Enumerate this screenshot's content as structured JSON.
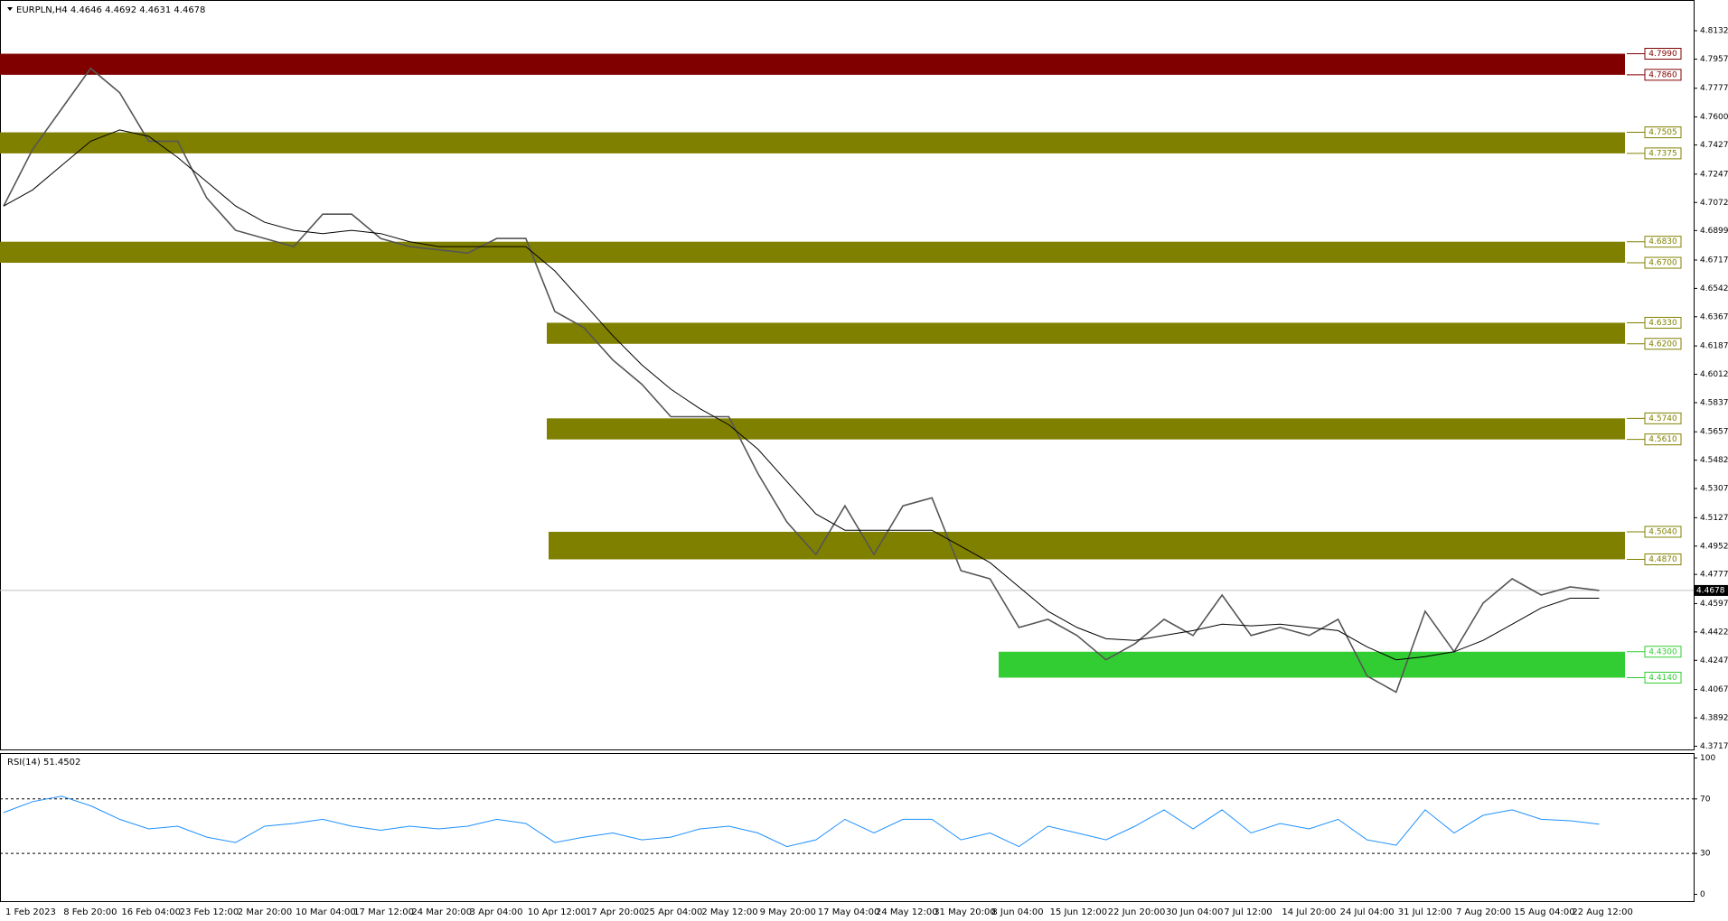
{
  "chart_data": [
    {
      "type": "line",
      "title": "EURPLN,H4  4.4646 4.4692 4.4631 4.4678",
      "categories": [
        "1 Feb 2023",
        null,
        "8 Feb 20:00",
        null,
        "16 Feb 04:00",
        null,
        "23 Feb 12:00",
        null,
        "2 Mar 20:00",
        null,
        "10 Mar 04:00",
        null,
        "17 Mar 12:00",
        null,
        "24 Mar 20:00",
        null,
        "3 Apr 04:00",
        null,
        "10 Apr 12:00",
        null,
        "17 Apr 20:00",
        null,
        "25 Apr 04:00",
        null,
        "2 May 12:00",
        null,
        "9 May 20:00",
        null,
        "17 May 04:00",
        null,
        "24 May 12:00",
        null,
        "31 May 20:00",
        null,
        "8 Jun 04:00",
        null,
        "15 Jun 12:00",
        null,
        "22 Jun 20:00",
        null,
        "30 Jun 04:00",
        null,
        "7 Jul 12:00",
        null,
        "14 Jul 20:00",
        null,
        "24 Jul 04:00",
        null,
        "31 Jul 12:00",
        null,
        "7 Aug 20:00",
        null,
        "15 Aug 04:00",
        null,
        "22 Aug 12:00",
        null
      ],
      "series": [
        {
          "color": "#555555",
          "values": [
            4.705,
            4.74,
            4.765,
            4.79,
            4.775,
            4.745,
            4.745,
            4.71,
            4.69,
            4.685,
            4.68,
            4.7,
            4.7,
            4.685,
            4.68,
            4.678,
            4.676,
            4.685,
            4.685,
            4.64,
            4.63,
            4.61,
            4.595,
            4.575,
            4.575,
            4.575,
            4.54,
            4.51,
            4.49,
            4.52,
            4.49,
            4.52,
            4.525,
            4.48,
            4.475,
            4.445,
            4.45,
            4.44,
            4.425,
            4.435,
            4.45,
            4.44,
            4.465,
            4.44,
            4.445,
            4.44,
            4.45,
            4.415,
            4.405,
            4.455,
            4.43,
            4.46,
            4.475,
            4.465,
            4.47,
            4.4678
          ]
        },
        {
          "color": "#000000",
          "values": [
            4.705,
            4.715,
            4.73,
            4.745,
            4.752,
            4.748,
            4.735,
            4.72,
            4.705,
            4.695,
            4.69,
            4.688,
            4.69,
            4.688,
            4.683,
            4.68,
            4.68,
            4.68,
            4.68,
            4.665,
            4.645,
            4.625,
            4.607,
            4.592,
            4.58,
            4.57,
            4.555,
            4.535,
            4.515,
            4.505,
            4.505,
            4.505,
            4.505,
            4.495,
            4.485,
            4.47,
            4.455,
            4.445,
            4.438,
            4.437,
            4.44,
            4.443,
            4.447,
            4.446,
            4.447,
            4.445,
            4.443,
            4.433,
            4.425,
            4.427,
            4.43,
            4.437,
            4.447,
            4.457,
            4.463,
            4.463
          ]
        }
      ],
      "ylim": [
        4.3697,
        4.8316
      ],
      "yticks": [
        4.8132,
        4.7957,
        4.7777,
        {
          "value": 4.76,
          "label": "4.7600"
        },
        4.7427,
        4.7247,
        4.7072,
        4.6899,
        4.6717,
        4.6542,
        4.6367,
        4.6187,
        4.6012,
        4.5837,
        4.5657,
        4.5482,
        4.5307,
        4.5127,
        4.4952,
        4.4777,
        4.4597,
        4.4422,
        4.4247,
        4.4067,
        4.3892,
        4.3717
      ],
      "last": 4.4678,
      "zones": [
        {
          "color": "#800000",
          "high": {
            "value": 4.799,
            "label": "4.7990"
          },
          "low": {
            "value": 4.786,
            "label": "4.7860"
          }
        },
        {
          "color": "#808000",
          "high": {
            "value": 4.7505,
            "label": "4.7505"
          },
          "low": {
            "value": 4.7375,
            "label": "4.7375"
          }
        },
        {
          "color": "#808000",
          "high": {
            "value": 4.683,
            "label": "4.6830"
          },
          "low": {
            "value": 4.67,
            "label": "4.6700"
          }
        },
        {
          "color": "#808000",
          "high": {
            "value": 4.633,
            "label": "4.6330"
          },
          "low": {
            "value": 4.62,
            "label": "4.6200"
          }
        },
        {
          "color": "#808000",
          "high": {
            "value": 4.574,
            "label": "4.5740"
          },
          "low": {
            "value": 4.561,
            "label": "4.5610"
          }
        },
        {
          "color": "#808000",
          "high": {
            "value": 4.504,
            "label": "4.5040"
          },
          "low": {
            "value": 4.487,
            "label": "4.4870"
          }
        },
        {
          "color": "#32cd32",
          "high": {
            "value": 4.43,
            "label": "4.4300"
          },
          "low": {
            "value": 4.414,
            "label": "4.4140"
          }
        }
      ]
    },
    {
      "type": "line",
      "title": "RSI(14) 51.4502",
      "series": [
        {
          "color": "#1e90ff",
          "values": [
            60,
            68,
            72,
            65,
            55,
            48,
            50,
            42,
            38,
            50,
            52,
            55,
            50,
            47,
            50,
            48,
            50,
            55,
            52,
            38,
            42,
            45,
            40,
            42,
            48,
            50,
            45,
            35,
            40,
            55,
            45,
            55,
            55,
            40,
            45,
            35,
            50,
            45,
            40,
            50,
            62,
            48,
            62,
            45,
            52,
            48,
            55,
            40,
            36,
            62,
            45,
            58,
            62,
            55,
            54,
            51.45
          ]
        }
      ],
      "ylim": [
        -5,
        103
      ],
      "yticks": [
        100,
        70,
        30,
        0
      ],
      "levels": [
        70,
        30
      ]
    }
  ]
}
